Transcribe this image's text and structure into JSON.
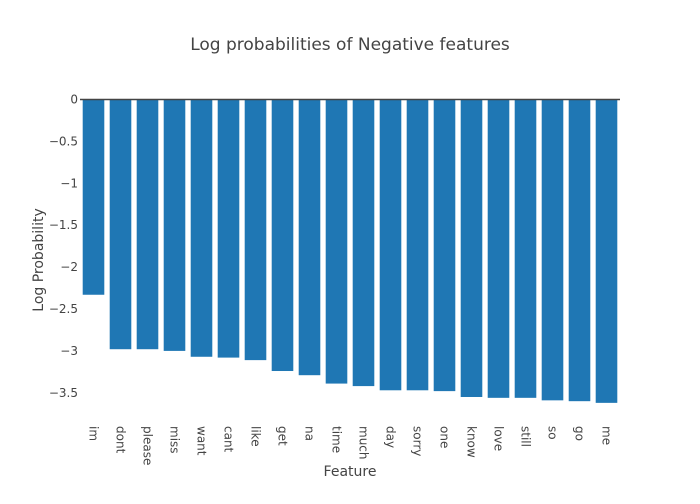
{
  "chart_data": {
    "type": "bar",
    "title": "Log probabilities of Negative features",
    "xlabel": "Feature",
    "ylabel": "Log Probability",
    "categories": [
      "im",
      "dont",
      "please",
      "miss",
      "want",
      "cant",
      "like",
      "get",
      "na",
      "time",
      "much",
      "day",
      "sorry",
      "one",
      "know",
      "love",
      "still",
      "so",
      "go",
      "me"
    ],
    "values": [
      -2.33,
      -2.98,
      -2.98,
      -3.0,
      -3.07,
      -3.08,
      -3.11,
      -3.24,
      -3.29,
      -3.39,
      -3.42,
      -3.47,
      -3.47,
      -3.48,
      -3.55,
      -3.56,
      -3.56,
      -3.59,
      -3.6,
      -3.62
    ],
    "ylim": [
      -3.7,
      0
    ],
    "yticks": [
      0,
      -0.5,
      -1,
      -1.5,
      -2,
      -2.5,
      -3,
      -3.5
    ],
    "ytick_labels": [
      "0",
      "−0.5",
      "−1",
      "−1.5",
      "−2",
      "−2.5",
      "−3",
      "−3.5"
    ],
    "grid": false,
    "legend": "none",
    "bar_color": "#1f77b4"
  }
}
